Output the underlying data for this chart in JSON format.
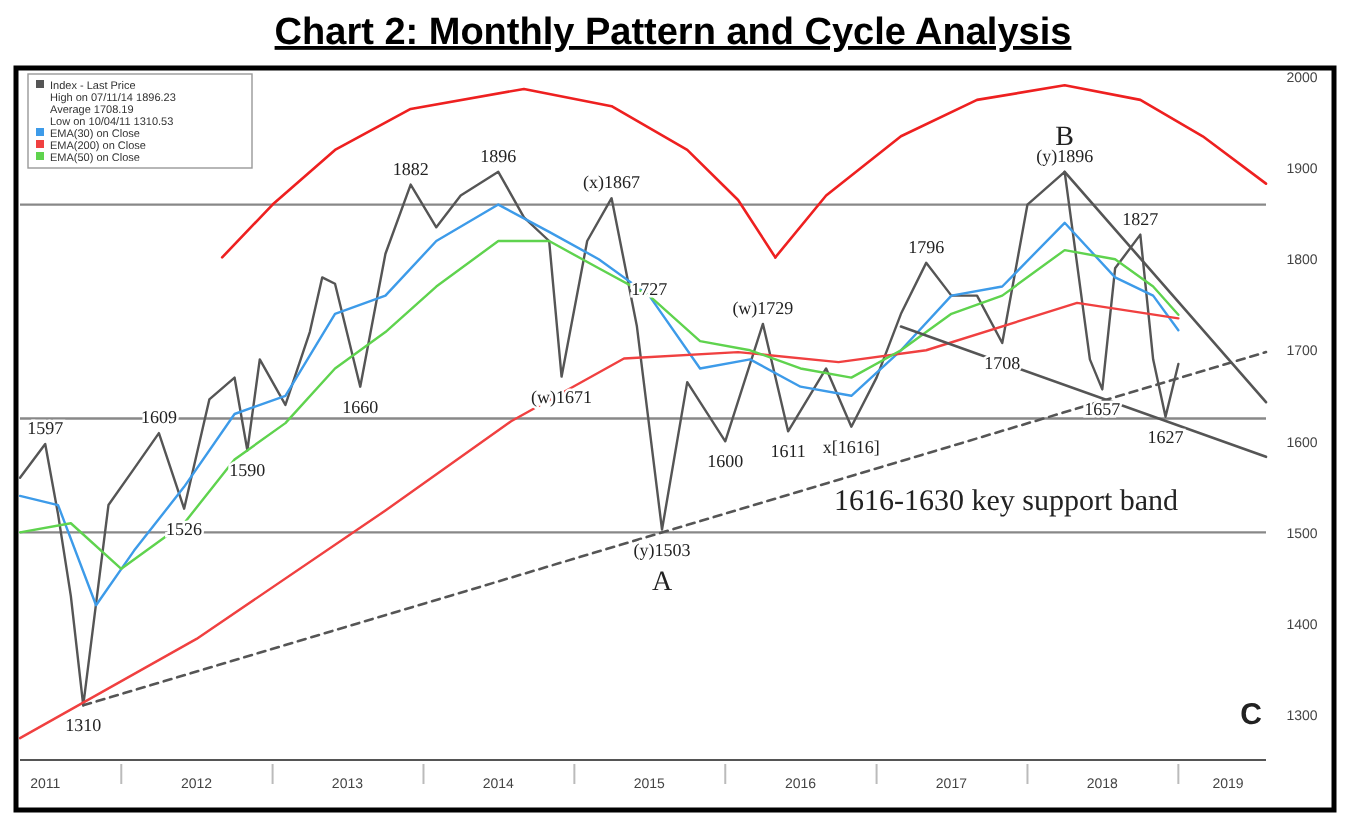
{
  "chart_data": {
    "type": "line",
    "title": "Chart 2: Monthly Pattern and Cycle Analysis",
    "xlim": [
      "2011-05",
      "2019-08"
    ],
    "ylim": [
      1250,
      2010
    ],
    "xticks": [
      {
        "value": "2011-07",
        "label": "2011"
      },
      {
        "value": "2012-01",
        "label": null
      },
      {
        "value": "2012-07",
        "label": "2012"
      },
      {
        "value": "2013-01",
        "label": null
      },
      {
        "value": "2013-07",
        "label": "2013"
      },
      {
        "value": "2014-01",
        "label": null
      },
      {
        "value": "2014-07",
        "label": "2014"
      },
      {
        "value": "2015-01",
        "label": null
      },
      {
        "value": "2015-07",
        "label": "2015"
      },
      {
        "value": "2016-01",
        "label": null
      },
      {
        "value": "2016-07",
        "label": "2016"
      },
      {
        "value": "2017-01",
        "label": null
      },
      {
        "value": "2017-07",
        "label": "2017"
      },
      {
        "value": "2018-01",
        "label": null
      },
      {
        "value": "2018-07",
        "label": "2018"
      },
      {
        "value": "2019-01",
        "label": null
      },
      {
        "value": "2019-05",
        "label": "2019"
      }
    ],
    "yticks": [
      1300,
      1400,
      1500,
      1600,
      1700,
      1800,
      1900,
      2000
    ],
    "grid": false,
    "legend": "top left",
    "series": [
      {
        "name": "Index - Last Price",
        "color": "#555555",
        "x": [
          "2011-05",
          "2011-07",
          "2011-08",
          "2011-09",
          "2011-10",
          "2011-12",
          "2012-02",
          "2012-04",
          "2012-06",
          "2012-08",
          "2012-10",
          "2012-11",
          "2012-12",
          "2013-02",
          "2013-04",
          "2013-05",
          "2013-06",
          "2013-08",
          "2013-10",
          "2013-12",
          "2014-02",
          "2014-04",
          "2014-07",
          "2014-09",
          "2014-11",
          "2014-12",
          "2015-02",
          "2015-04",
          "2015-06",
          "2015-08",
          "2015-10",
          "2016-01",
          "2016-04",
          "2016-06",
          "2016-09",
          "2016-11",
          "2017-01",
          "2017-03",
          "2017-05",
          "2017-07",
          "2017-09",
          "2017-11",
          "2018-01",
          "2018-04",
          "2018-06",
          "2018-07",
          "2018-08",
          "2018-10",
          "2018-11",
          "2018-12",
          "2019-01"
        ],
        "values": [
          1560,
          1597,
          1520,
          1430,
          1310,
          1530,
          1570,
          1609,
          1526,
          1646,
          1670,
          1590,
          1690,
          1640,
          1720,
          1780,
          1773,
          1660,
          1806,
          1882,
          1835,
          1870,
          1896,
          1846,
          1820,
          1671,
          1820,
          1867,
          1727,
          1503,
          1665,
          1600,
          1729,
          1611,
          1680,
          1616,
          1670,
          1740,
          1796,
          1760,
          1760,
          1708,
          1860,
          1896,
          1690,
          1657,
          1790,
          1827,
          1690,
          1627,
          1685
        ]
      },
      {
        "name": "EMA(30) on Close",
        "color": "#3d9be9",
        "x": [
          "2011-05",
          "2011-08",
          "2011-11",
          "2012-02",
          "2012-06",
          "2012-10",
          "2013-02",
          "2013-06",
          "2013-10",
          "2014-02",
          "2014-07",
          "2014-11",
          "2015-03",
          "2015-07",
          "2015-11",
          "2016-03",
          "2016-07",
          "2016-11",
          "2017-03",
          "2017-07",
          "2017-11",
          "2018-04",
          "2018-08",
          "2018-11",
          "2019-01"
        ],
        "values": [
          1540,
          1530,
          1420,
          1480,
          1550,
          1630,
          1650,
          1740,
          1760,
          1820,
          1860,
          1830,
          1800,
          1760,
          1680,
          1690,
          1660,
          1650,
          1700,
          1760,
          1770,
          1840,
          1780,
          1760,
          1722
        ]
      },
      {
        "name": "EMA(200) on Close",
        "color": "#f04040",
        "x": [
          "2011-05",
          "2012-07",
          "2013-10",
          "2014-08",
          "2015-05",
          "2016-02",
          "2016-10",
          "2017-05",
          "2018-05",
          "2019-01"
        ],
        "values": [
          1274,
          1383,
          1524,
          1622,
          1691,
          1698,
          1687,
          1700,
          1752,
          1735
        ]
      },
      {
        "name": "EMA(50) on Close",
        "color": "#5fd34e",
        "x": [
          "2011-05",
          "2011-09",
          "2012-01",
          "2012-06",
          "2012-10",
          "2013-02",
          "2013-06",
          "2013-10",
          "2014-02",
          "2014-07",
          "2014-11",
          "2015-03",
          "2015-07",
          "2015-11",
          "2016-03",
          "2016-07",
          "2016-11",
          "2017-03",
          "2017-07",
          "2017-11",
          "2018-04",
          "2018-08",
          "2018-11",
          "2019-01"
        ],
        "values": [
          1500,
          1510,
          1460,
          1510,
          1580,
          1620,
          1680,
          1720,
          1770,
          1820,
          1820,
          1790,
          1760,
          1710,
          1700,
          1680,
          1670,
          1700,
          1740,
          1760,
          1810,
          1800,
          1770,
          1739
        ]
      },
      {
        "color": "#ee2020",
        "x": [
          "2012-09",
          "2013-01",
          "2013-06",
          "2013-12",
          "2014-09",
          "2015-04",
          "2015-10",
          "2016-02",
          "2016-05"
        ],
        "values": [
          1802,
          1860,
          1920,
          1965,
          1987,
          1968,
          1920,
          1865,
          1802
        ]
      },
      {
        "color": "#ee2020",
        "x": [
          "2016-05",
          "2016-09",
          "2017-03",
          "2017-09",
          "2018-04",
          "2018-10",
          "2019-03",
          "2019-08"
        ],
        "values": [
          1802,
          1870,
          1935,
          1975,
          1991,
          1975,
          1935,
          1883
        ]
      },
      {
        "color": "#555555",
        "line_style": "dashed",
        "x": [
          "2011-10",
          "2019-08"
        ],
        "values": [
          1310,
          1698
        ]
      },
      {
        "color": "#555555",
        "x": [
          "2018-04",
          "2019-08"
        ],
        "values": [
          1896,
          1643
        ]
      },
      {
        "color": "#555555",
        "x": [
          "2017-03",
          "2019-08"
        ],
        "values": [
          1726,
          1583
        ]
      }
    ],
    "ref_lines": [
      {
        "axis": "y",
        "value": 1860,
        "color": "#888888"
      },
      {
        "axis": "y",
        "value": 1625,
        "color": "#888888"
      },
      {
        "axis": "y",
        "value": 1500,
        "color": "#888888"
      }
    ],
    "annotations": [
      {
        "text": "1597",
        "x": "2011-07",
        "y": 1597
      },
      {
        "text": "1310",
        "x": "2011-10",
        "y": 1310
      },
      {
        "text": "1526",
        "x": "2012-06",
        "y": 1526
      },
      {
        "text": "1609",
        "x": "2012-04",
        "y": 1609
      },
      {
        "text": "1590",
        "x": "2012-11",
        "y": 1590
      },
      {
        "text": "1660",
        "x": "2013-08",
        "y": 1660
      },
      {
        "text": "1882",
        "x": "2013-12",
        "y": 1882
      },
      {
        "text": "1896",
        "x": "2014-07",
        "y": 1896
      },
      {
        "text": "(x)1867",
        "x": "2015-04",
        "y": 1867
      },
      {
        "text": "(w)1671",
        "x": "2014-12",
        "y": 1671
      },
      {
        "text": "1727",
        "x": "2015-07",
        "y": 1750
      },
      {
        "text": "(y)1503",
        "x": "2015-08",
        "y": 1503
      },
      {
        "text": "A",
        "x": "2015-08",
        "y": 1503
      },
      {
        "text": "(w)1729",
        "x": "2016-04",
        "y": 1729
      },
      {
        "text": "1600",
        "x": "2016-01",
        "y": 1600
      },
      {
        "text": "1611",
        "x": "2016-06",
        "y": 1611
      },
      {
        "text": "x[1616]",
        "x": "2016-11",
        "y": 1616
      },
      {
        "text": "1796",
        "x": "2017-05",
        "y": 1796
      },
      {
        "text": "1708",
        "x": "2017-11",
        "y": 1708
      },
      {
        "text": "(y)1896",
        "x": "2018-04",
        "y": 1896
      },
      {
        "text": "1827",
        "x": "2018-10",
        "y": 1827
      },
      {
        "text": "1657",
        "x": "2018-07",
        "y": 1657
      },
      {
        "text": "1627",
        "x": "2018-12",
        "y": 1627
      },
      {
        "text": "B",
        "x": "2018-04",
        "y": 1991
      },
      "1616-1630 key support band",
      "C",
      "High on 07/11/14 1896.23",
      "Average 1708.19",
      "Low on 10/04/11 1310.53"
    ]
  }
}
